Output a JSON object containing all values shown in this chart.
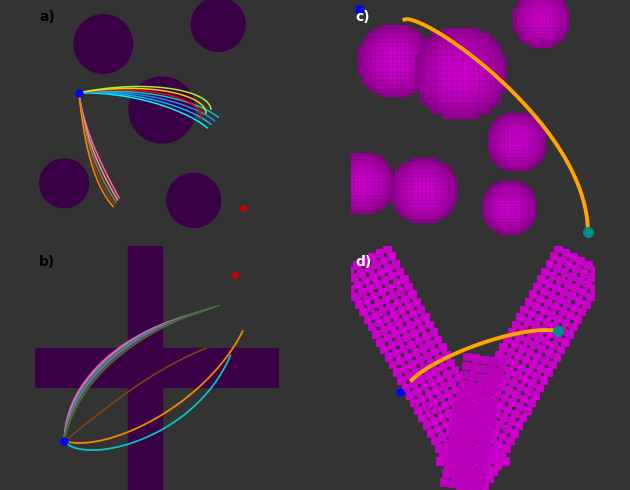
{
  "fig_width": 6.3,
  "fig_height": 4.9,
  "dpi": 100,
  "bg_color": "#333333",
  "yellow": "#FFE000",
  "obstacle_color": "#3a0045",
  "panel_labels": [
    "a)",
    "b)",
    "c)",
    "d)"
  ],
  "label_fontsize": 10,
  "teal_dot": "#008B8B",
  "blue_dot": "#0000FF",
  "red_dot": "#CC0000",
  "orange_path": "#FFA500",
  "traj_a_upper": [
    "#00FFFF",
    "#00BFFF",
    "#1E90FF",
    "#00CED1",
    "#FF0000",
    "#FFD700",
    "#ADFF2F"
  ],
  "traj_a_lower": [
    "#FF69B4",
    "#FFA07A",
    "#808080",
    "#8B4513",
    "#FF8C00"
  ],
  "traj_b_main": [
    "#FF69B4",
    "#DA70D6",
    "#808080",
    "#556B2F",
    "#00BFFF",
    "#4169E1",
    "#FF0000",
    "#228B22"
  ],
  "traj_b_wide": [
    "#FF8C00",
    "#00CED1",
    "#8B4513"
  ]
}
